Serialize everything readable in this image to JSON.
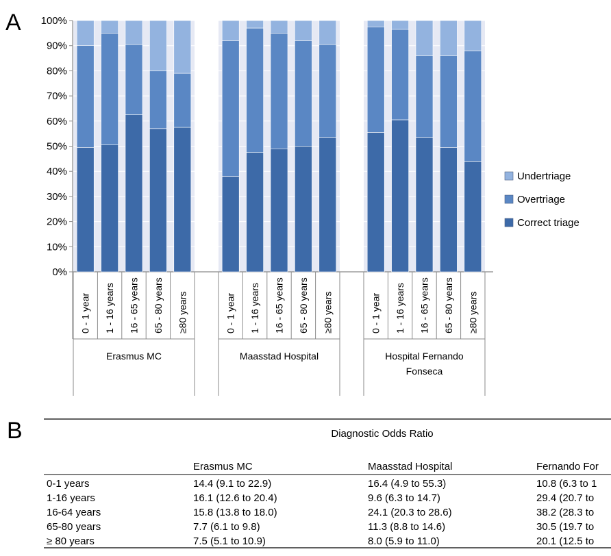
{
  "chart_data": {
    "type": "bar",
    "stacked": true,
    "panel_label": "A",
    "ylim": [
      0,
      100
    ],
    "y_ticks": [
      "0%",
      "10%",
      "20%",
      "30%",
      "40%",
      "50%",
      "60%",
      "70%",
      "80%",
      "90%",
      "100%"
    ],
    "grid": true,
    "legend_position": "right",
    "groups": [
      {
        "name": "Erasmus MC",
        "categories": [
          "0 - 1 year",
          "1 - 16 years",
          "16 - 65 years",
          "65 - 80 years",
          "≥80 years"
        ],
        "series": [
          {
            "name": "Correct triage",
            "values": [
              49.5,
              50.5,
              62.5,
              57,
              57.5
            ]
          },
          {
            "name": "Overtriage",
            "values": [
              40.5,
              44.5,
              28,
              23,
              21.5
            ]
          },
          {
            "name": "Undertriage",
            "values": [
              10,
              5,
              9.5,
              20,
              21
            ]
          }
        ]
      },
      {
        "name": "Maasstad Hospital",
        "categories": [
          "0 - 1 year",
          "1 - 16 years",
          "16 - 65 years",
          "65 - 80 years",
          "≥80 years"
        ],
        "series": [
          {
            "name": "Correct triage",
            "values": [
              38,
              47.5,
              49,
              50,
              53.5
            ]
          },
          {
            "name": "Overtriage",
            "values": [
              54,
              49.5,
              46,
              42,
              37
            ]
          },
          {
            "name": "Undertriage",
            "values": [
              8,
              3,
              5,
              8,
              9.5
            ]
          }
        ]
      },
      {
        "name": "Hospital Fernando Fonseca",
        "categories": [
          "0 - 1 year",
          "1 - 16 years",
          "16 - 65 years",
          "65 - 80 years",
          "≥80 years"
        ],
        "series": [
          {
            "name": "Correct triage",
            "values": [
              55.5,
              60.5,
              53.5,
              49.5,
              44
            ]
          },
          {
            "name": "Overtriage",
            "values": [
              42,
              36,
              32.5,
              36.5,
              44
            ]
          },
          {
            "name": "Undertriage",
            "values": [
              2.5,
              3.5,
              14,
              14,
              12
            ]
          }
        ]
      }
    ],
    "legend": [
      "Undertriage",
      "Overtriage",
      "Correct triage"
    ],
    "colors": {
      "Correct triage": "#3d6aa8",
      "Overtriage": "#5a87c4",
      "Undertriage": "#93b3df",
      "background_band": "#e6e9f4",
      "axis": "#8a8a8a"
    }
  },
  "table": {
    "panel_label": "B",
    "title": "Diagnostic Odds Ratio",
    "columns": [
      "Erasmus MC",
      "Maasstad Hospital",
      "Fernando For"
    ],
    "rows": [
      {
        "label": "0-1 years",
        "cells": [
          "14.4 (9.1 to 22.9)",
          "16.4 (4.9 to 55.3)",
          "10.8 (6.3 to 1"
        ]
      },
      {
        "label": "1-16 years",
        "cells": [
          "16.1 (12.6 to 20.4)",
          "9.6 (6.3 to 14.7)",
          "29.4 (20.7 to"
        ]
      },
      {
        "label": "16-64 years",
        "cells": [
          "15.8 (13.8 to 18.0)",
          "24.1 (20.3 to 28.6)",
          "38.2 (28.3 to"
        ]
      },
      {
        "label": "65-80 years",
        "cells": [
          "7.7 (6.1 to 9.8)",
          "11.3 (8.8 to 14.6)",
          "30.5 (19.7 to"
        ]
      },
      {
        "label": "≥ 80 years",
        "cells": [
          "7.5 (5.1 to 10.9)",
          "8.0 (5.9 to 11.0)",
          "20.1 (12.5 to"
        ]
      }
    ]
  }
}
